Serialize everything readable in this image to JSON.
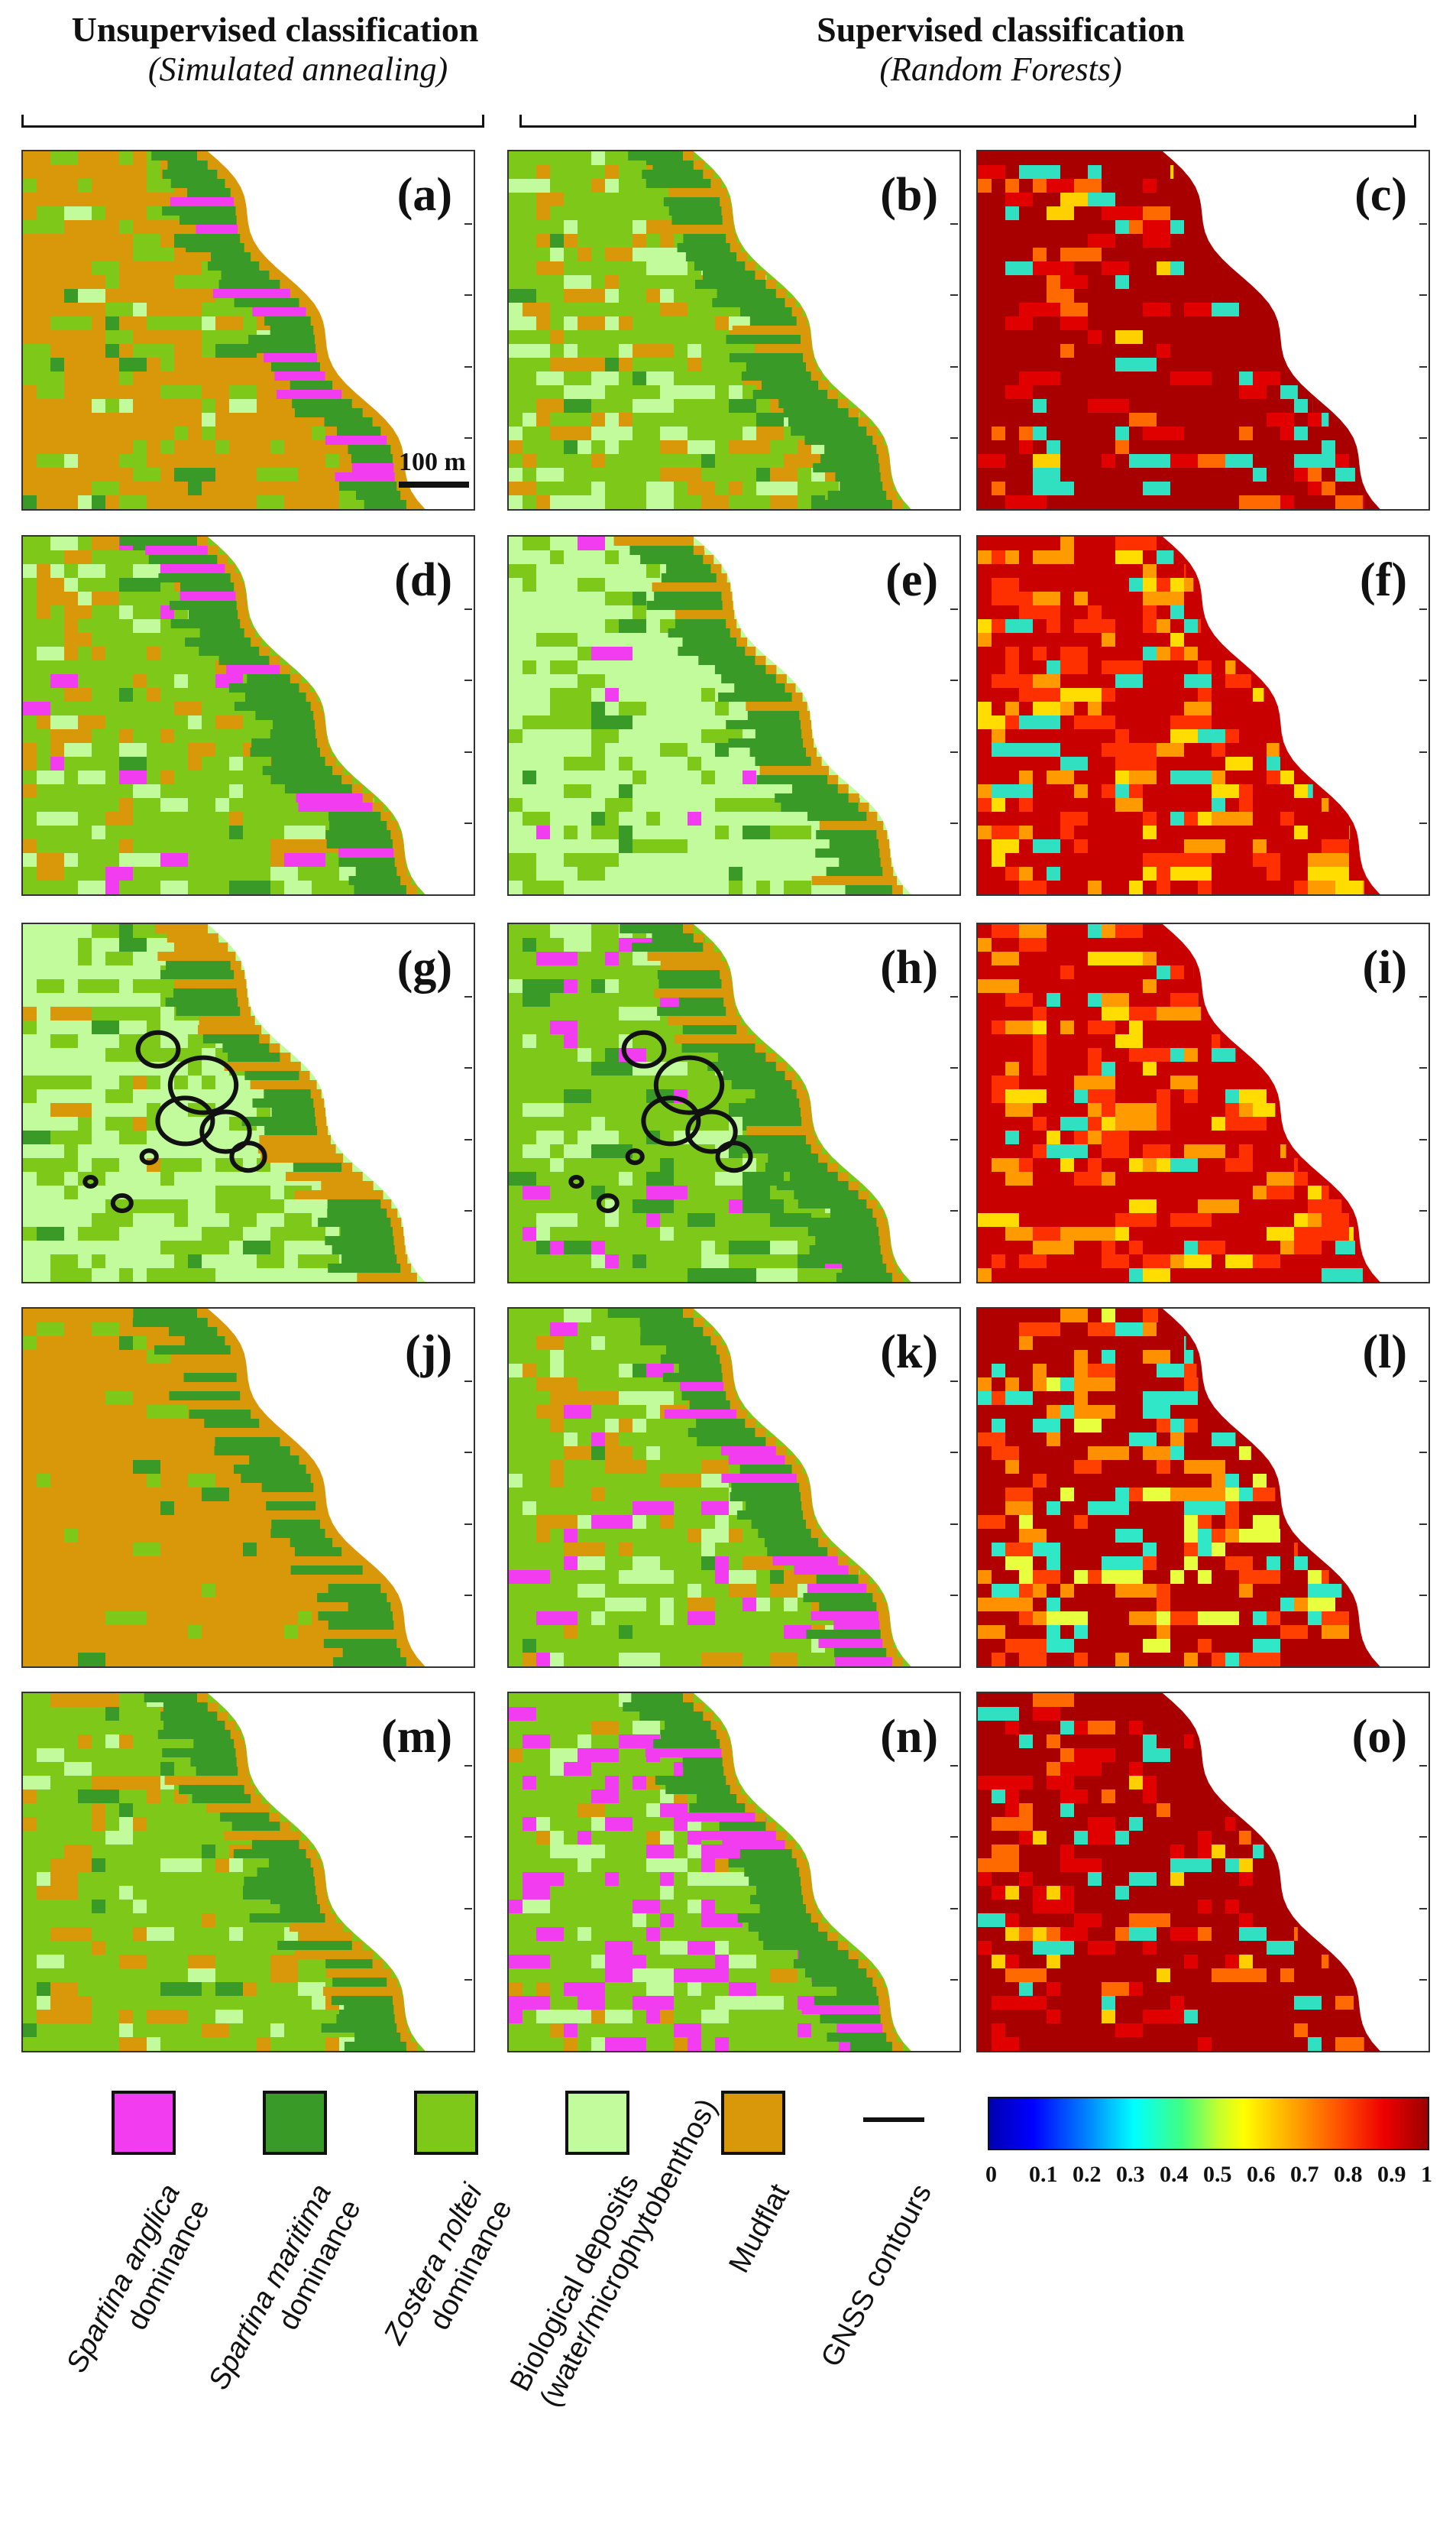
{
  "headers": {
    "unsupervised_title": "Unsupervised classification",
    "unsupervised_sub": "(Simulated annealing)",
    "supervised_title": "Supervised classification",
    "supervised_sub": "(Random Forests)"
  },
  "panels": [
    {
      "label": "(a)",
      "type": "class",
      "theme": "mud"
    },
    {
      "label": "(b)",
      "type": "class",
      "theme": "zost"
    },
    {
      "label": "(c)",
      "type": "prob",
      "theme": "high"
    },
    {
      "label": "(d)",
      "type": "class",
      "theme": "zostpink"
    },
    {
      "label": "(e)",
      "type": "class",
      "theme": "bio"
    },
    {
      "label": "(f)",
      "type": "prob",
      "theme": "mid"
    },
    {
      "label": "(g)",
      "type": "class",
      "theme": "biozost"
    },
    {
      "label": "(h)",
      "type": "class",
      "theme": "zostdark"
    },
    {
      "label": "(i)",
      "type": "prob",
      "theme": "mid"
    },
    {
      "label": "(j)",
      "type": "class",
      "theme": "mudonly"
    },
    {
      "label": "(k)",
      "type": "class",
      "theme": "zostpink2"
    },
    {
      "label": "(l)",
      "type": "prob",
      "theme": "midcyan"
    },
    {
      "label": "(m)",
      "type": "class",
      "theme": "zost2"
    },
    {
      "label": "(n)",
      "type": "class",
      "theme": "pinkbio"
    },
    {
      "label": "(o)",
      "type": "prob",
      "theme": "high"
    }
  ],
  "scale_bar": "100 m",
  "colors": {
    "spartina_anglica": "#f23cf0",
    "spartina_maritima": "#3a9a28",
    "zostera_noltei": "#7ec81a",
    "biological_deposits": "#c2fb9c",
    "mudflat": "#d9980a"
  },
  "legend": [
    {
      "color": "#f23cf0",
      "line1": "Spartina anglica",
      "line2": "dominance",
      "italic": true
    },
    {
      "color": "#3a9a28",
      "line1": "Spartina maritima",
      "line2": "dominance",
      "italic": true
    },
    {
      "color": "#7ec81a",
      "line1": "Zostera noltei",
      "line2": "dominance",
      "italic": true
    },
    {
      "color": "#c2fb9c",
      "line1": "Biological deposits",
      "line2": "(water/microphytobenthos)",
      "italic": false
    },
    {
      "color": "#d9980a",
      "line1": "Mudflat",
      "line2": "",
      "italic": false
    },
    {
      "color": "line",
      "line1": "GNSS contours",
      "line2": "",
      "italic": false
    }
  ],
  "colorbar": {
    "ticks": [
      "0",
      "0.1",
      "0.2",
      "0.3",
      "0.4",
      "0.5",
      "0.6",
      "0.7",
      "0.8",
      "0.9",
      "1"
    ]
  }
}
